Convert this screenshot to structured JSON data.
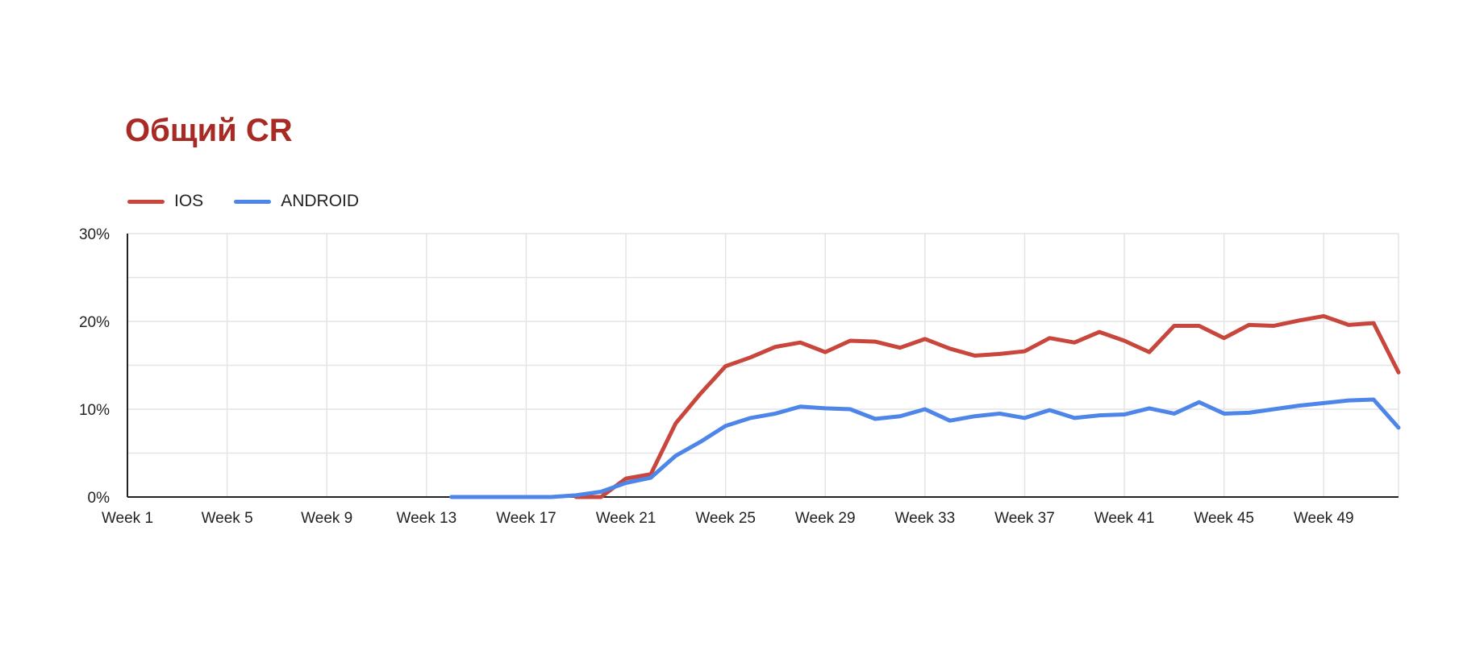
{
  "chart_data": {
    "type": "line",
    "title": "Общий CR",
    "x": [
      "Week 1",
      "Week 2",
      "Week 3",
      "Week 4",
      "Week 5",
      "Week 6",
      "Week 7",
      "Week 8",
      "Week 9",
      "Week 10",
      "Week 11",
      "Week 12",
      "Week 13",
      "Week 14",
      "Week 15",
      "Week 16",
      "Week 17",
      "Week 18",
      "Week 19",
      "Week 20",
      "Week 21",
      "Week 22",
      "Week 23",
      "Week 24",
      "Week 25",
      "Week 26",
      "Week 27",
      "Week 28",
      "Week 29",
      "Week 30",
      "Week 31",
      "Week 32",
      "Week 33",
      "Week 34",
      "Week 35",
      "Week 36",
      "Week 37",
      "Week 38",
      "Week 39",
      "Week 40",
      "Week 41",
      "Week 42",
      "Week 43",
      "Week 44",
      "Week 45",
      "Week 46",
      "Week 47",
      "Week 48",
      "Week 49",
      "Week 50",
      "Week 51",
      "Week 52"
    ],
    "x_tick_labels": [
      "Week 1",
      "Week 5",
      "Week 9",
      "Week 13",
      "Week 17",
      "Week 21",
      "Week 25",
      "Week 29",
      "Week 33",
      "Week 37",
      "Week 41",
      "Week 45",
      "Week 49"
    ],
    "y_tick_labels": [
      "0%",
      "10%",
      "20%",
      "30%"
    ],
    "ylim": [
      0,
      30
    ],
    "yticks": [
      0,
      10,
      20,
      30
    ],
    "y_unit": "%",
    "grid": true,
    "legend_position": "top-left",
    "series": [
      {
        "name": "IOS",
        "color": "#c8463c",
        "values": [
          null,
          null,
          null,
          null,
          null,
          null,
          null,
          null,
          null,
          null,
          null,
          null,
          null,
          null,
          null,
          null,
          null,
          null,
          0,
          0,
          2.1,
          2.6,
          8.4,
          11.8,
          14.9,
          15.9,
          17.1,
          17.6,
          16.5,
          17.8,
          17.7,
          17.0,
          18.0,
          16.9,
          16.1,
          16.3,
          16.6,
          18.1,
          17.6,
          18.8,
          17.8,
          16.5,
          19.5,
          19.5,
          18.1,
          19.6,
          19.5,
          20.1,
          20.6,
          19.6,
          19.8,
          14.2
        ]
      },
      {
        "name": "ANDROID",
        "color": "#4d86e8",
        "values": [
          null,
          null,
          null,
          null,
          null,
          null,
          null,
          null,
          null,
          null,
          null,
          null,
          null,
          0,
          0,
          0,
          0,
          0,
          0.2,
          0.6,
          1.6,
          2.2,
          4.7,
          6.3,
          8.1,
          9.0,
          9.5,
          10.3,
          10.1,
          10.0,
          8.9,
          9.2,
          10.0,
          8.7,
          9.2,
          9.5,
          9.0,
          9.9,
          9.0,
          9.3,
          9.4,
          10.1,
          9.5,
          10.8,
          9.5,
          9.6,
          10.0,
          10.4,
          10.7,
          11.0,
          11.1,
          7.9
        ]
      }
    ]
  },
  "colors": {
    "title": "#a82a24",
    "axis": "#222222",
    "gridline": "#e4e4e4"
  }
}
